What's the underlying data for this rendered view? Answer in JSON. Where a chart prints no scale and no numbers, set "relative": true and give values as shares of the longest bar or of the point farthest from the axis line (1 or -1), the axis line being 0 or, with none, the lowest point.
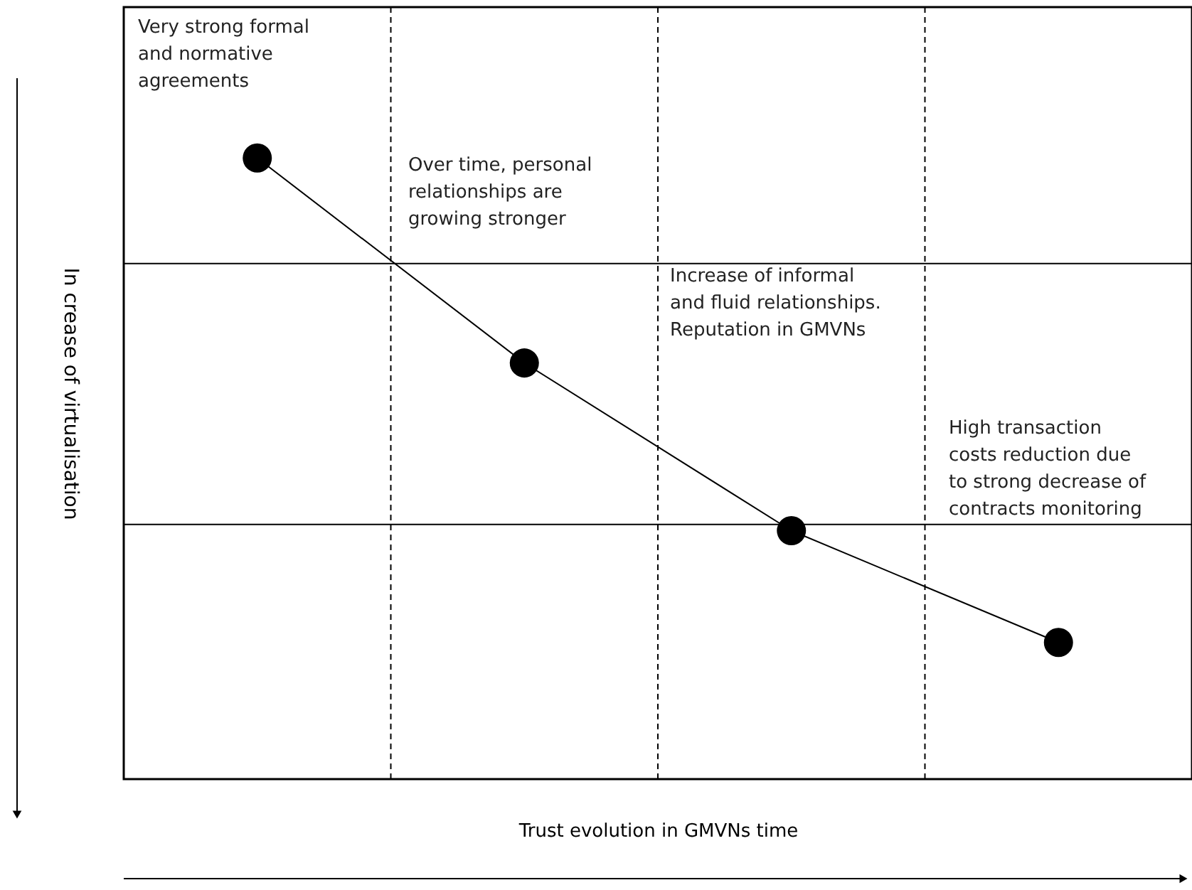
{
  "chart_data": {
    "type": "line",
    "relative": true,
    "categories": [
      null,
      null,
      null,
      null
    ],
    "series": [
      {
        "color": "#000000",
        "values": [
          1,
          0.67,
          0.4,
          0.22
        ]
      }
    ],
    "marker": "circle",
    "grid": "x",
    "ref_lines": [
      {
        "axis": "y",
        "value": 0.83
      },
      {
        "axis": "y",
        "value": 0.41
      }
    ],
    "xlabel": "Trust evolution in GMVNs time",
    "ylabel": "In crease of virtualisation",
    "annotations": [
      "Very strong formal\nand normative\nagreements",
      "Over time, personal\nrelationships are\ngrowing stronger",
      "Increase of informal\nand fluid relationships.\nReputation in GMVNs",
      "High transaction\ncosts reduction due\nto strong decrease of\ncontracts monitoring"
    ]
  }
}
